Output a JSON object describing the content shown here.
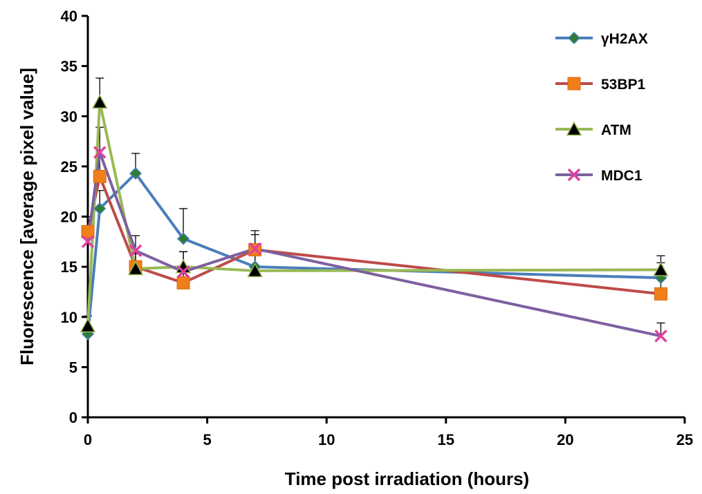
{
  "chart_data": {
    "type": "line",
    "title": "",
    "xlabel": "Time post irradiation (hours)",
    "ylabel": "Fluorescence [average pixel value]",
    "xlim": [
      0,
      25
    ],
    "ylim": [
      0,
      40
    ],
    "xticks": [
      0,
      5,
      10,
      15,
      20,
      25
    ],
    "yticks": [
      0,
      5,
      10,
      15,
      20,
      25,
      30,
      35,
      40
    ],
    "grid": false,
    "legend_position": "top-right",
    "series": [
      {
        "name": "γH2AX",
        "line_color": "#4a7ebb",
        "marker": "diamond",
        "marker_color": "#2e7d32",
        "x": [
          0,
          0.5,
          2,
          4,
          7,
          24
        ],
        "y": [
          8.3,
          20.8,
          24.3,
          17.8,
          15.0,
          13.9
        ],
        "err": [
          0.5,
          1.8,
          2.0,
          3.0,
          1.5,
          1.5
        ]
      },
      {
        "name": "53BP1",
        "line_color": "#be4b48",
        "marker": "square",
        "marker_color": "#f07f1a",
        "x": [
          0,
          0.5,
          2,
          4,
          7,
          24
        ],
        "y": [
          18.5,
          24.0,
          15.0,
          13.4,
          16.7,
          12.3
        ],
        "err": [
          1.5,
          2.0,
          1.5,
          1.0,
          1.5,
          2.2
        ]
      },
      {
        "name": "ATM",
        "line_color": "#98b954",
        "marker": "triangle",
        "marker_color": "#000000",
        "x": [
          0,
          0.5,
          2,
          4,
          7,
          24
        ],
        "y": [
          9.1,
          31.4,
          14.8,
          15.0,
          14.6,
          14.7
        ],
        "err": [
          1.0,
          2.4,
          1.5,
          1.5,
          1.5,
          1.4
        ]
      },
      {
        "name": "MDC1",
        "line_color": "#7d60a0",
        "marker": "x",
        "marker_color": "#e040a0",
        "x": [
          0,
          0.5,
          2,
          4,
          7,
          24
        ],
        "y": [
          17.5,
          26.4,
          16.6,
          14.5,
          16.8,
          8.1
        ],
        "err": [
          1.0,
          2.5,
          1.5,
          2.0,
          1.8,
          1.3
        ]
      }
    ]
  }
}
